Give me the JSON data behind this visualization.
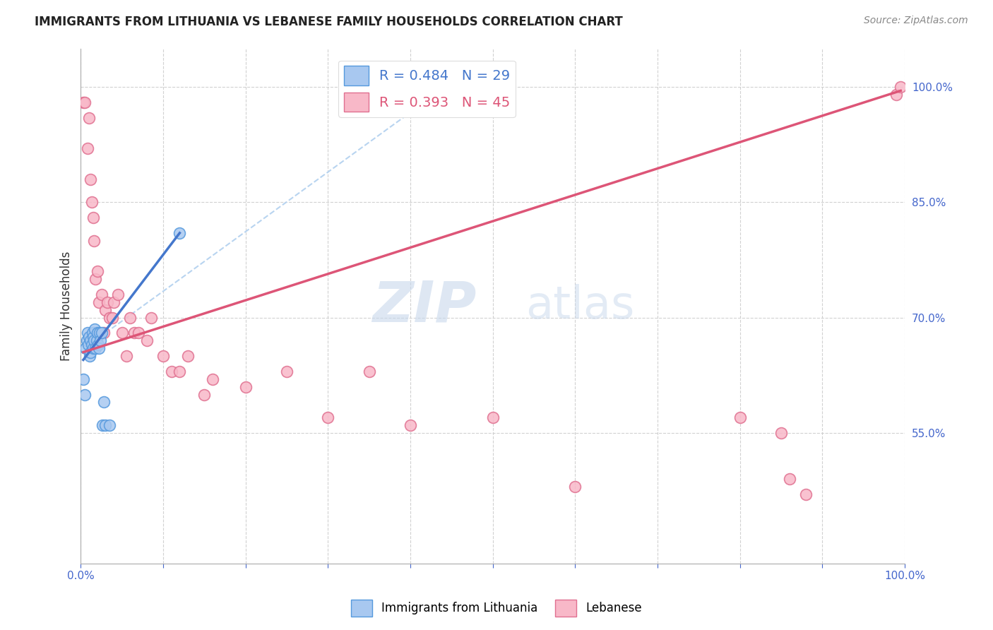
{
  "title": "IMMIGRANTS FROM LITHUANIA VS LEBANESE FAMILY HOUSEHOLDS CORRELATION CHART",
  "source": "Source: ZipAtlas.com",
  "ylabel": "Family Households",
  "xlim": [
    0.0,
    1.0
  ],
  "ylim": [
    0.38,
    1.05
  ],
  "ytick_positions": [
    0.55,
    0.7,
    0.85,
    1.0
  ],
  "ytick_labels": [
    "55.0%",
    "70.0%",
    "85.0%",
    "100.0%"
  ],
  "watermark_zip": "ZIP",
  "watermark_atlas": "atlas",
  "legend_r1": "R = 0.484",
  "legend_n1": "N = 29",
  "legend_r2": "R = 0.393",
  "legend_n2": "N = 45",
  "color_blue_fill": "#a8c8f0",
  "color_blue_edge": "#5599dd",
  "color_pink_fill": "#f8b8c8",
  "color_pink_edge": "#e07090",
  "color_blue_line": "#4477cc",
  "color_pink_line": "#dd5577",
  "color_diag": "#b8d4f0",
  "blue_scatter_x": [
    0.003,
    0.005,
    0.006,
    0.007,
    0.008,
    0.009,
    0.01,
    0.011,
    0.012,
    0.012,
    0.013,
    0.014,
    0.015,
    0.015,
    0.016,
    0.017,
    0.018,
    0.019,
    0.02,
    0.021,
    0.022,
    0.023,
    0.024,
    0.025,
    0.026,
    0.028,
    0.03,
    0.035,
    0.12
  ],
  "blue_scatter_y": [
    0.62,
    0.6,
    0.66,
    0.67,
    0.68,
    0.665,
    0.675,
    0.65,
    0.655,
    0.67,
    0.665,
    0.68,
    0.66,
    0.675,
    0.67,
    0.685,
    0.66,
    0.67,
    0.68,
    0.665,
    0.66,
    0.68,
    0.67,
    0.68,
    0.56,
    0.59,
    0.56,
    0.56,
    0.81
  ],
  "pink_scatter_x": [
    0.003,
    0.005,
    0.008,
    0.01,
    0.012,
    0.013,
    0.015,
    0.016,
    0.018,
    0.02,
    0.022,
    0.025,
    0.028,
    0.03,
    0.032,
    0.035,
    0.038,
    0.04,
    0.045,
    0.05,
    0.055,
    0.06,
    0.065,
    0.07,
    0.08,
    0.085,
    0.1,
    0.11,
    0.12,
    0.13,
    0.15,
    0.16,
    0.2,
    0.25,
    0.3,
    0.35,
    0.4,
    0.5,
    0.6,
    0.8,
    0.85,
    0.86,
    0.88,
    0.99,
    0.995
  ],
  "pink_scatter_y": [
    0.98,
    0.98,
    0.92,
    0.96,
    0.88,
    0.85,
    0.83,
    0.8,
    0.75,
    0.76,
    0.72,
    0.73,
    0.68,
    0.71,
    0.72,
    0.7,
    0.7,
    0.72,
    0.73,
    0.68,
    0.65,
    0.7,
    0.68,
    0.68,
    0.67,
    0.7,
    0.65,
    0.63,
    0.63,
    0.65,
    0.6,
    0.62,
    0.61,
    0.63,
    0.57,
    0.63,
    0.56,
    0.57,
    0.48,
    0.57,
    0.55,
    0.49,
    0.47,
    0.99,
    1.0
  ],
  "blue_line_x": [
    0.003,
    0.12
  ],
  "blue_line_y": [
    0.645,
    0.81
  ],
  "pink_line_x": [
    0.003,
    0.995
  ],
  "pink_line_y": [
    0.655,
    0.995
  ],
  "diag_line_x": [
    0.03,
    0.43
  ],
  "diag_line_y": [
    0.68,
    0.99
  ]
}
